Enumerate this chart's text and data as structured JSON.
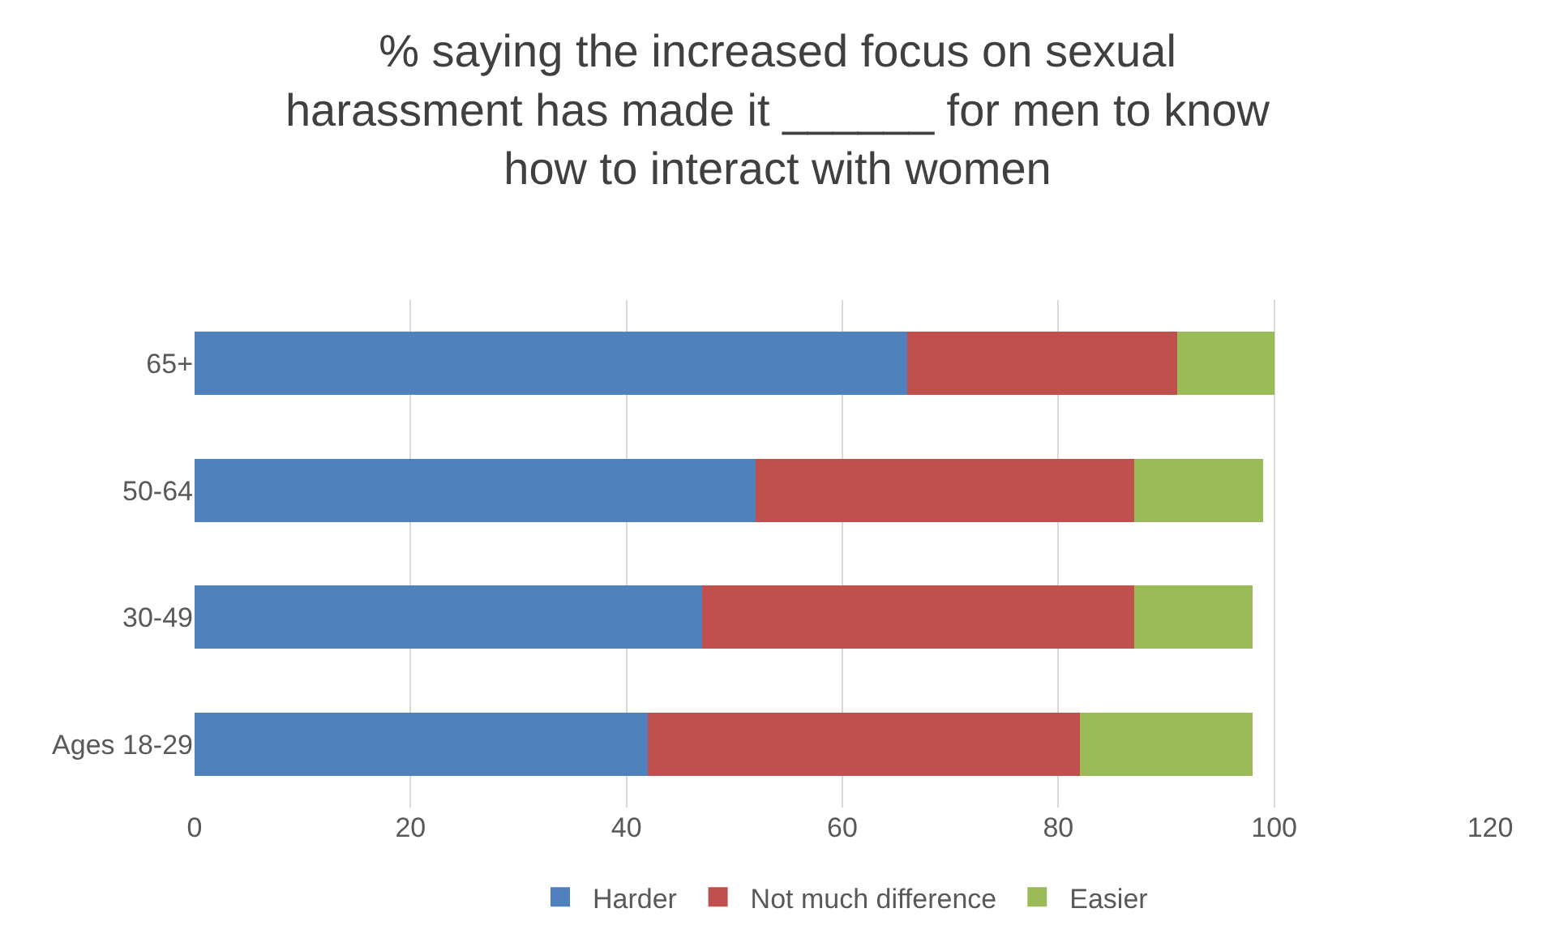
{
  "chart_data": {
    "type": "bar",
    "orientation": "horizontal",
    "stacked": true,
    "title": "% saying the increased focus on sexual harassment has made it ______ for men to know how to interact with women",
    "categories": [
      "65+",
      "50-64",
      "30-49",
      "Ages 18-29"
    ],
    "series": [
      {
        "name": "Harder",
        "color": "#4f81bd",
        "values": [
          66,
          52,
          47,
          42
        ]
      },
      {
        "name": "Not much difference",
        "color": "#c0504d",
        "values": [
          25,
          35,
          40,
          40
        ]
      },
      {
        "name": "Easier",
        "color": "#9bbb59",
        "values": [
          9,
          12,
          11,
          16
        ]
      }
    ],
    "xlim": [
      0,
      120
    ],
    "xticks": [
      0,
      20,
      40,
      60,
      80,
      100,
      120
    ],
    "grid": "x",
    "legend": "bottom"
  }
}
